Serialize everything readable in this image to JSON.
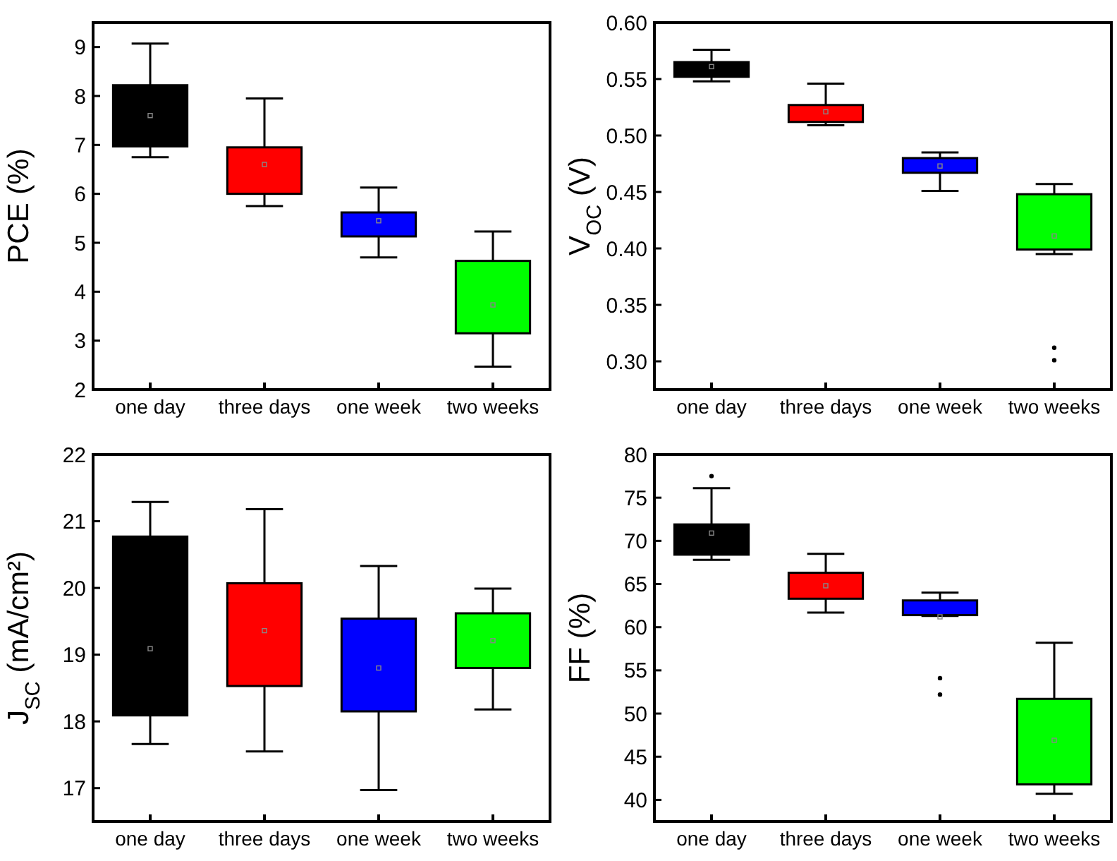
{
  "chart_data": [
    {
      "type": "box",
      "ylabel": "PCE (%)",
      "categories": [
        "one day",
        "three days",
        "one week",
        "two weeks"
      ],
      "ylim": [
        2,
        9.5
      ],
      "yticks": [
        2,
        3,
        4,
        5,
        6,
        7,
        8,
        9
      ],
      "colors": [
        "#000000",
        "#ff0000",
        "#0000ff",
        "#00ff00"
      ],
      "boxes": [
        {
          "low": 6.75,
          "q1": 6.97,
          "q3": 8.22,
          "high": 9.07,
          "mean": 7.6
        },
        {
          "low": 5.75,
          "q1": 6.0,
          "q3": 6.95,
          "high": 7.95,
          "mean": 6.6
        },
        {
          "low": 4.7,
          "q1": 5.13,
          "q3": 5.62,
          "high": 6.13,
          "mean": 5.45
        },
        {
          "low": 2.47,
          "q1": 3.15,
          "q3": 4.63,
          "high": 5.23,
          "mean": 3.73
        }
      ]
    },
    {
      "type": "box",
      "ylabel": "V$_{OC}$ (V)",
      "categories": [
        "one day",
        "three days",
        "one week",
        "two weeks"
      ],
      "ylim": [
        0.275,
        0.6
      ],
      "yticks": [
        {
          "value": 0.3,
          "label": "0.30"
        },
        {
          "value": 0.35,
          "label": "0.35"
        },
        {
          "value": 0.4,
          "label": "0.40"
        },
        {
          "value": 0.45,
          "label": "0.45"
        },
        {
          "value": 0.5,
          "label": "0.50"
        },
        {
          "value": 0.55,
          "label": "0.55"
        },
        {
          "value": 0.6,
          "label": "0.60"
        }
      ],
      "colors": [
        "#000000",
        "#ff0000",
        "#0000ff",
        "#00ff00"
      ],
      "boxes": [
        {
          "low": 0.548,
          "q1": 0.552,
          "q3": 0.565,
          "high": 0.576,
          "mean": 0.561
        },
        {
          "low": 0.509,
          "q1": 0.512,
          "q3": 0.527,
          "high": 0.546,
          "mean": 0.521
        },
        {
          "low": 0.451,
          "q1": 0.467,
          "q3": 0.48,
          "high": 0.485,
          "mean": 0.473
        },
        {
          "low": 0.395,
          "q1": 0.399,
          "q3": 0.448,
          "high": 0.457,
          "mean": 0.411,
          "outliers": [
            0.312,
            0.301
          ]
        }
      ]
    },
    {
      "type": "box",
      "ylabel": "J$_{SC}$ (mA/cm²)",
      "categories": [
        "one day",
        "three days",
        "one week",
        "two weeks"
      ],
      "ylim": [
        16.5,
        22
      ],
      "yticks": [
        17,
        18,
        19,
        20,
        21,
        22
      ],
      "colors": [
        "#000000",
        "#ff0000",
        "#0000ff",
        "#00ff00"
      ],
      "boxes": [
        {
          "low": 17.66,
          "q1": 18.09,
          "q3": 20.77,
          "high": 21.29,
          "mean": 19.09
        },
        {
          "low": 17.55,
          "q1": 18.53,
          "q3": 20.07,
          "high": 21.18,
          "mean": 19.36
        },
        {
          "low": 16.97,
          "q1": 18.15,
          "q3": 19.54,
          "high": 20.33,
          "mean": 18.8
        },
        {
          "low": 18.18,
          "q1": 18.8,
          "q3": 19.62,
          "high": 19.99,
          "mean": 19.21
        }
      ]
    },
    {
      "type": "box",
      "ylabel": "FF (%)",
      "categories": [
        "one day",
        "three days",
        "one week",
        "two weeks"
      ],
      "ylim": [
        37.5,
        80
      ],
      "yticks": [
        40,
        45,
        50,
        55,
        60,
        65,
        70,
        75,
        80
      ],
      "colors": [
        "#000000",
        "#ff0000",
        "#0000ff",
        "#00ff00"
      ],
      "boxes": [
        {
          "low": 67.8,
          "q1": 68.4,
          "q3": 71.9,
          "high": 76.1,
          "mean": 70.9,
          "outliers": [
            77.5
          ]
        },
        {
          "low": 61.7,
          "q1": 63.3,
          "q3": 66.3,
          "high": 68.5,
          "mean": 64.8
        },
        {
          "low": 61.3,
          "q1": 61.4,
          "q3": 63.1,
          "high": 64.0,
          "mean": 61.2,
          "outliers": [
            54.1,
            52.2
          ]
        },
        {
          "low": 40.7,
          "q1": 41.8,
          "q3": 51.7,
          "high": 58.2,
          "mean": 46.9
        }
      ]
    }
  ]
}
